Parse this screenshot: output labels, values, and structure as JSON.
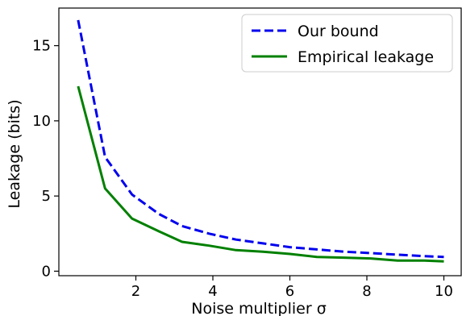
{
  "chart_data": {
    "type": "line",
    "title": "",
    "xlabel": "Noise multiplier σ",
    "ylabel": "Leakage (bits)",
    "xlim": [
      0.0,
      10.45
    ],
    "ylim": [
      -0.3,
      17.5
    ],
    "x_ticks": [
      2,
      4,
      6,
      8,
      10
    ],
    "y_ticks": [
      0,
      5,
      10,
      15
    ],
    "grid": false,
    "legend_position": "top-right",
    "series": [
      {
        "name": "Our bound",
        "color": "#0000ee",
        "line_style": "dashed",
        "x": [
          0.5,
          1.2,
          1.9,
          2.6,
          3.2,
          3.9,
          4.6,
          5.3,
          6.0,
          6.7,
          7.4,
          8.1,
          8.8,
          9.5,
          10.0
        ],
        "y": [
          16.7,
          7.6,
          5.1,
          3.8,
          3.0,
          2.5,
          2.1,
          1.85,
          1.6,
          1.45,
          1.3,
          1.2,
          1.1,
          1.0,
          0.95
        ]
      },
      {
        "name": "Empirical leakage",
        "color": "#008000",
        "line_style": "solid",
        "x": [
          0.5,
          1.2,
          1.9,
          2.6,
          3.2,
          3.9,
          4.6,
          5.3,
          6.0,
          6.7,
          7.4,
          8.1,
          8.8,
          9.5,
          10.0
        ],
        "y": [
          12.3,
          5.5,
          3.5,
          2.65,
          1.95,
          1.7,
          1.4,
          1.3,
          1.15,
          0.95,
          0.9,
          0.85,
          0.7,
          0.7,
          0.65
        ]
      }
    ]
  }
}
